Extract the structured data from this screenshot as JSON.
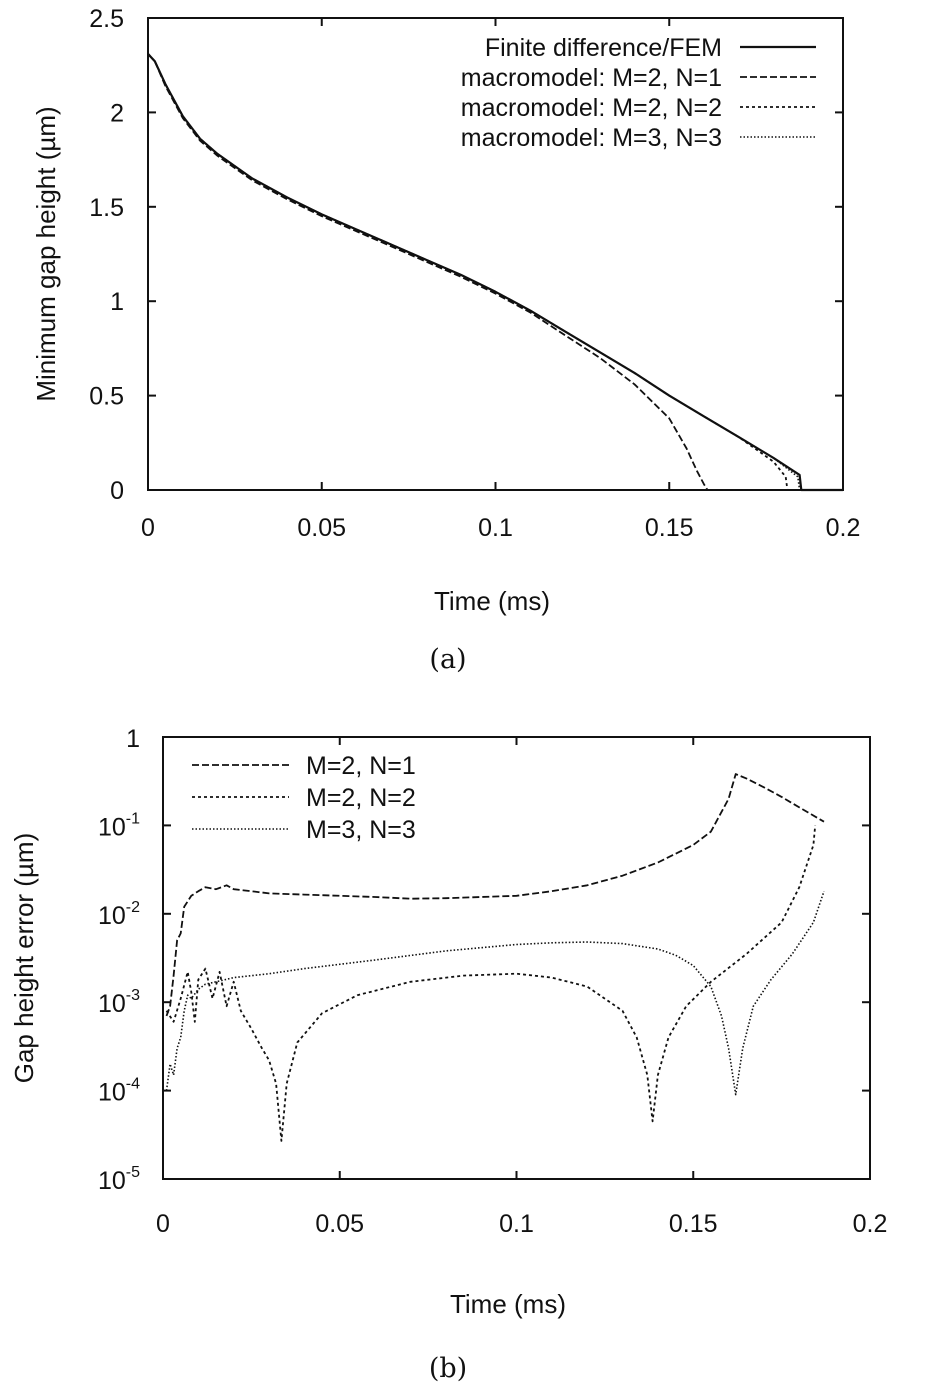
{
  "chart_data": [
    {
      "type": "line",
      "caption": "(a)",
      "xlabel": "Time (ms)",
      "ylabel": "Minimum gap height (µm)",
      "xlim": [
        0,
        0.2
      ],
      "ylim": [
        0,
        2.5
      ],
      "xticks": [
        0,
        0.05,
        0.1,
        0.15,
        0.2
      ],
      "xtick_labels": [
        "0",
        "0.05",
        "0.1",
        "0.15",
        "0.2"
      ],
      "yticks": [
        0,
        0.5,
        1,
        1.5,
        2,
        2.5
      ],
      "ytick_labels": [
        "0",
        "0.5",
        "1",
        "1.5",
        "2",
        "2.5"
      ],
      "legend_position": "top-right",
      "series": [
        {
          "name": "Finite difference/FEM",
          "style": "solid",
          "x": [
            0,
            0.002,
            0.005,
            0.01,
            0.015,
            0.02,
            0.03,
            0.04,
            0.05,
            0.06,
            0.07,
            0.08,
            0.09,
            0.1,
            0.11,
            0.12,
            0.13,
            0.14,
            0.15,
            0.16,
            0.17,
            0.18,
            0.1875,
            0.188,
            0.19,
            0.2
          ],
          "y": [
            2.31,
            2.27,
            2.15,
            1.98,
            1.86,
            1.78,
            1.65,
            1.55,
            1.46,
            1.38,
            1.3,
            1.22,
            1.14,
            1.05,
            0.95,
            0.84,
            0.73,
            0.62,
            0.5,
            0.39,
            0.28,
            0.17,
            0.08,
            0.0,
            0.0,
            0.0
          ]
        },
        {
          "name": "macromodel: M=2, N=1",
          "style": "dashed",
          "x": [
            0,
            0.002,
            0.005,
            0.01,
            0.015,
            0.02,
            0.03,
            0.04,
            0.05,
            0.06,
            0.07,
            0.08,
            0.09,
            0.1,
            0.11,
            0.12,
            0.13,
            0.14,
            0.15,
            0.155,
            0.158,
            0.16,
            0.161,
            0.2
          ],
          "y": [
            2.31,
            2.27,
            2.14,
            1.97,
            1.85,
            1.77,
            1.64,
            1.54,
            1.45,
            1.37,
            1.29,
            1.21,
            1.13,
            1.04,
            0.94,
            0.82,
            0.7,
            0.56,
            0.38,
            0.22,
            0.1,
            0.03,
            0.0,
            0.0
          ]
        },
        {
          "name": "macromodel: M=2, N=2",
          "style": "dotted",
          "x": [
            0,
            0.002,
            0.005,
            0.01,
            0.015,
            0.02,
            0.03,
            0.04,
            0.05,
            0.06,
            0.07,
            0.08,
            0.09,
            0.1,
            0.11,
            0.12,
            0.13,
            0.14,
            0.15,
            0.16,
            0.17,
            0.18,
            0.1835,
            0.184,
            0.2
          ],
          "y": [
            2.31,
            2.27,
            2.15,
            1.98,
            1.86,
            1.78,
            1.65,
            1.55,
            1.46,
            1.38,
            1.3,
            1.22,
            1.14,
            1.05,
            0.95,
            0.84,
            0.73,
            0.62,
            0.5,
            0.39,
            0.28,
            0.15,
            0.07,
            0.0,
            0.0
          ]
        },
        {
          "name": "macromodel: M=3, N=3",
          "style": "fine-dotted",
          "x": [
            0,
            0.002,
            0.005,
            0.01,
            0.015,
            0.02,
            0.03,
            0.04,
            0.05,
            0.06,
            0.07,
            0.08,
            0.09,
            0.1,
            0.11,
            0.12,
            0.13,
            0.14,
            0.15,
            0.16,
            0.17,
            0.18,
            0.187,
            0.1875,
            0.2
          ],
          "y": [
            2.31,
            2.27,
            2.15,
            1.98,
            1.86,
            1.78,
            1.65,
            1.55,
            1.46,
            1.38,
            1.3,
            1.22,
            1.14,
            1.05,
            0.95,
            0.84,
            0.73,
            0.62,
            0.5,
            0.39,
            0.28,
            0.17,
            0.07,
            0.0,
            0.0
          ]
        }
      ]
    },
    {
      "type": "line",
      "caption": "(b)",
      "xlabel": "Time (ms)",
      "ylabel": "Gap height error (µm)",
      "yscale": "log",
      "xlim": [
        0,
        0.2
      ],
      "ylim": [
        1e-05,
        1
      ],
      "xticks": [
        0,
        0.05,
        0.1,
        0.15,
        0.2
      ],
      "xtick_labels": [
        "0",
        "0.05",
        "0.1",
        "0.15",
        "0.2"
      ],
      "yticks": [
        1e-05,
        0.0001,
        0.001,
        0.01,
        0.1,
        1
      ],
      "ytick_labels": [
        {
          "base": "10",
          "exp": "-5"
        },
        {
          "base": "10",
          "exp": "-4"
        },
        {
          "base": "10",
          "exp": "-3"
        },
        {
          "base": "10",
          "exp": "-2"
        },
        {
          "base": "10",
          "exp": "-1"
        },
        {
          "base": "1",
          "exp": ""
        }
      ],
      "legend_position": "top-left",
      "series": [
        {
          "name": "M=2, N=1",
          "style": "dashed",
          "x": [
            0.001,
            0.002,
            0.003,
            0.004,
            0.005,
            0.006,
            0.008,
            0.01,
            0.012,
            0.015,
            0.018,
            0.02,
            0.025,
            0.03,
            0.04,
            0.05,
            0.06,
            0.07,
            0.08,
            0.09,
            0.1,
            0.11,
            0.12,
            0.13,
            0.14,
            0.15,
            0.155,
            0.16,
            0.162,
            0.165,
            0.17,
            0.175,
            0.18,
            0.187
          ],
          "y": [
            0.0007,
            0.0009,
            0.002,
            0.005,
            0.006,
            0.012,
            0.016,
            0.018,
            0.02,
            0.019,
            0.021,
            0.019,
            0.018,
            0.017,
            0.0165,
            0.016,
            0.0155,
            0.0148,
            0.015,
            0.0155,
            0.016,
            0.018,
            0.021,
            0.027,
            0.038,
            0.06,
            0.085,
            0.2,
            0.38,
            0.34,
            0.27,
            0.21,
            0.16,
            0.11
          ]
        },
        {
          "name": "M=2, N=2",
          "style": "dotted",
          "x": [
            0.001,
            0.003,
            0.005,
            0.007,
            0.008,
            0.009,
            0.01,
            0.012,
            0.014,
            0.016,
            0.018,
            0.02,
            0.022,
            0.025,
            0.028,
            0.03,
            0.032,
            0.0335,
            0.035,
            0.038,
            0.045,
            0.055,
            0.07,
            0.085,
            0.1,
            0.11,
            0.12,
            0.13,
            0.134,
            0.137,
            0.1385,
            0.14,
            0.143,
            0.148,
            0.155,
            0.165,
            0.175,
            0.18,
            0.184,
            0.1845
          ],
          "y": [
            0.0008,
            0.0006,
            0.0011,
            0.0022,
            0.0013,
            0.0006,
            0.0018,
            0.0024,
            0.0011,
            0.0022,
            0.0009,
            0.0017,
            0.0008,
            0.0005,
            0.0003,
            0.00022,
            0.00012,
            2.7e-05,
            0.00012,
            0.00035,
            0.00075,
            0.0012,
            0.0017,
            0.002,
            0.0021,
            0.0019,
            0.0015,
            0.0008,
            0.0004,
            0.00015,
            4.5e-05,
            0.00015,
            0.0004,
            0.0009,
            0.0017,
            0.0035,
            0.008,
            0.02,
            0.06,
            0.1
          ]
        },
        {
          "name": "M=3, N=3",
          "style": "fine-dotted",
          "x": [
            0.001,
            0.002,
            0.003,
            0.004,
            0.005,
            0.006,
            0.007,
            0.008,
            0.01,
            0.012,
            0.015,
            0.02,
            0.03,
            0.04,
            0.06,
            0.08,
            0.1,
            0.11,
            0.12,
            0.13,
            0.14,
            0.145,
            0.15,
            0.155,
            0.158,
            0.16,
            0.162,
            0.164,
            0.167,
            0.172,
            0.178,
            0.184,
            0.187
          ],
          "y": [
            0.0001,
            0.0002,
            0.00015,
            0.0003,
            0.0004,
            0.0008,
            0.0012,
            0.0011,
            0.0014,
            0.0016,
            0.0017,
            0.0019,
            0.0021,
            0.0024,
            0.003,
            0.0038,
            0.0045,
            0.0047,
            0.0048,
            0.0046,
            0.004,
            0.0034,
            0.0026,
            0.0015,
            0.0007,
            0.0003,
            9e-05,
            0.0003,
            0.0009,
            0.0018,
            0.0035,
            0.008,
            0.018
          ]
        }
      ]
    }
  ]
}
